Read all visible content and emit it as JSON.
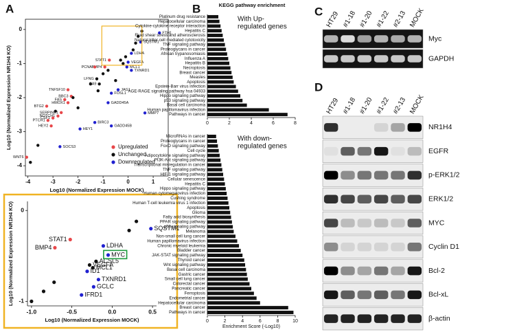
{
  "panel_labels": [
    "A",
    "B",
    "C",
    "D"
  ],
  "chart_data": [
    {
      "type": "scatter",
      "xlabel": "Log10 (Normalized Expression MOCK)",
      "ylabel": "Log10 (Normalized Expression NR1H4 KO)",
      "xlim": [
        -4.1,
        1.6
      ],
      "ylim": [
        -4.3,
        0.3
      ],
      "xticks": [
        -4,
        -3,
        -2,
        -1,
        0,
        1
      ],
      "yticks": [
        -4,
        -3,
        -2,
        -1,
        0
      ],
      "legend": "lower right",
      "series": [
        {
          "name": "Upregulated",
          "color": "#e8474a",
          "label_side": "left",
          "x": [
            -0.75,
            -0.93,
            -1.33,
            -2.27,
            -2.4,
            -2.53,
            -2.4,
            -3.25,
            -2.67,
            -2.8,
            -3.0,
            -3.2,
            -3.07,
            -4.05
          ],
          "y": [
            -0.9,
            -1.1,
            -1.1,
            -1.96,
            -1.77,
            -2.06,
            -2.15,
            -2.25,
            -2.44,
            -2.54,
            -2.6,
            -2.67,
            -2.83,
            -3.75
          ],
          "labels": [
            "STAT1",
            "BMP4",
            "PCNA",
            "BBC3",
            "TNFSF10",
            "FAS",
            "HMOX1",
            "BTG2",
            "SERPINE1",
            "NOTCH1",
            "CSF1",
            "PTCH1",
            "HEY2",
            "WNT6"
          ]
        },
        {
          "name": "Unchanged",
          "color": "#111111",
          "label_side": "left",
          "x": [
            -3.9,
            -3.6,
            -2.9,
            -2.0,
            -1.5,
            -1.0,
            -0.8,
            -0.3,
            0.2,
            0.3,
            0.4,
            0.55,
            -1.2,
            -0.5,
            -2.2,
            -1.25,
            -1.15,
            -0.2,
            -0.1
          ],
          "y": [
            -3.9,
            -3.4,
            -2.4,
            -2.3,
            -1.6,
            -1.3,
            -1.2,
            -0.9,
            -0.6,
            -0.4,
            -0.2,
            -0.05,
            -1.8,
            -1.5,
            -2.0,
            -1.45,
            -1.6,
            -1.0,
            -0.8
          ],
          "labels": [
            null,
            null,
            null,
            null,
            null,
            null,
            null,
            null,
            null,
            null,
            null,
            null,
            null,
            null,
            null,
            "LFNG",
            "CA9",
            null,
            null
          ]
        },
        {
          "name": "Downregulated",
          "color": "#2020d0",
          "label_side": "right",
          "x": [
            1.25,
            0.5,
            0.13,
            0.0,
            0.13,
            0.67,
            -0.8,
            -0.67,
            -0.4,
            -0.67,
            -1.33,
            -1.92,
            -2.72,
            -0.05
          ],
          "y": [
            -0.1,
            -0.37,
            -0.7,
            -0.96,
            -1.2,
            -2.45,
            -2.15,
            -2.83,
            -1.77,
            -1.87,
            -2.73,
            -2.92,
            -3.44,
            -1.1
          ],
          "labels": [
            "FTH1",
            "SQSTM1",
            "LDHA",
            "VEGFA",
            "TXNRD1",
            "MMP7",
            "GADD45A",
            "GADD45B",
            "JAG1",
            "FOSL1",
            "BIRC3",
            "HEY1",
            "SOCS3",
            "MCL1"
          ]
        }
      ]
    },
    {
      "type": "scatter",
      "xlabel": "Log10 (Normalized Expression MOCK)",
      "ylabel": "Log10 (Normalized Expression NR1H4 KO)",
      "xlim": [
        -1.05,
        0.55
      ],
      "ylim": [
        -1.05,
        0.1
      ],
      "xticks": [
        {
          "value": -1,
          "label": "-1.0"
        },
        {
          "value": -0.5,
          "label": "-0.5"
        },
        {
          "value": 0,
          "label": "0.0"
        },
        0.5
      ],
      "yticks": [
        -1,
        0
      ],
      "highlight_color": "#1a9a3a",
      "series": [
        {
          "color": "#e8474a",
          "label_side": "left",
          "x": [
            -0.52,
            -0.71
          ],
          "y": [
            -0.32,
            -0.41
          ],
          "labels": [
            "STAT1",
            "BMP4"
          ]
        },
        {
          "color": "#111111",
          "label_side": "right",
          "x": [
            0.3,
            0.21,
            -0.72,
            -0.85,
            -1.0,
            -0.2,
            -0.28,
            -0.24
          ],
          "y": [
            -0.12,
            -0.22,
            -0.79,
            -0.89,
            -1.0,
            -0.56,
            -0.6,
            -0.63
          ],
          "labels": [
            null,
            null,
            null,
            null,
            null,
            "ACSL5",
            "VEGFA",
            "MCL1"
          ]
        },
        {
          "color": "#2020d0",
          "label_side": "right",
          "highlight": 2,
          "x": [
            0.48,
            -0.11,
            -0.05,
            -0.31,
            -0.17,
            -0.23,
            -0.38
          ],
          "y": [
            -0.2,
            -0.39,
            -0.49,
            -0.67,
            -0.76,
            -0.84,
            -0.93
          ],
          "labels": [
            "SQSTM1",
            "LDHA",
            "MYC",
            "ID1",
            "TXNRD1",
            "GCLC",
            "IFRD1"
          ]
        }
      ]
    },
    {
      "type": "barh",
      "title": "KEGG pathway enrichment",
      "annotation": [
        "With Up-",
        "regulated genes"
      ],
      "annotation_color": "#d62728",
      "color": "#111111",
      "xlim": [
        0,
        8
      ],
      "xticks": [
        0,
        2,
        4,
        6,
        8
      ],
      "categories": [
        "Platinum drug resistance",
        "Hepatocellular carcinoma",
        "Cytokine-cytokine receptor interaction",
        "Hepatitis C",
        "Fluid shear stress and atherosclerosis",
        "Natural killer cell mediated cytotoxicity",
        "TNF signaling pathway",
        "Proteoglycans in cancer",
        "African trypanosomiasis",
        "Influenza A",
        "Hepatitis B",
        "Necroptosis",
        "Breast cancer",
        "Measles",
        "Apoptosis",
        "Epstein-Barr virus infection",
        "AGE-RAGE signaling pathway hsa 04933",
        "Hippo signaling pathway",
        "p53 signaling pathway",
        "Basal cell carcinoma",
        "Human papillomavirus infection",
        "Pathways in cancer"
      ],
      "values": [
        1.0,
        1.1,
        1.2,
        1.3,
        1.4,
        1.5,
        1.6,
        1.7,
        1.8,
        1.9,
        2.0,
        2.1,
        2.2,
        2.3,
        2.4,
        2.6,
        2.8,
        3.0,
        3.2,
        3.6,
        5.6,
        7.3
      ]
    },
    {
      "type": "barh",
      "annotation": [
        "With down-",
        "regulated genes"
      ],
      "annotation_color": "#2929c8",
      "color": "#111111",
      "xlim": [
        0,
        10
      ],
      "xticks": [
        0,
        2,
        4,
        6,
        8,
        10
      ],
      "xlabel": "Enrichment Score (-Log10)",
      "categories": [
        "MicroRNAs in cancer",
        "Proteoglycans in cancer",
        "FoxO signaling pathway",
        "Cell cycle",
        "Adipocytokine signaling pathway",
        "PI3K-Akt signaling pathway",
        "Transcriptional misregulation in cancer",
        "TNF signaling pathway",
        "HIF-1 signaling pathway",
        "Cellular senescence",
        "Hepatitis C",
        "Hippo signaling pathway",
        "Human cytomegalovirus infection",
        "Cushing syndrome",
        "Human T-cell leukemia virus 1 infection",
        "Apoptosis",
        "Glioma",
        "Fatty acid biosynthesis",
        "PPAR signaling pathway",
        "p53 signaling pathway",
        "Melanoma",
        "Non-small cell lung cancer",
        "Human papillomavirus infection",
        "Chronic myeloid leukemia",
        "Bladder cancer",
        "JAK-STAT signaling pathway",
        "Thyroid cancer",
        "Wnt signaling pathway",
        "Basal cell carcinoma",
        "Gastric cancer",
        "Small cell lung cancer",
        "Colorectal cancer",
        "Pancreatic cancer",
        "Ferroptosis",
        "Endometrial cancer",
        "Hepatocellular carcinoma",
        "Breast cancer",
        "Pathways in cancer"
      ],
      "values": [
        1.0,
        1.1,
        1.2,
        1.3,
        1.4,
        1.5,
        1.6,
        1.7,
        1.8,
        1.9,
        2.0,
        2.1,
        2.2,
        2.3,
        2.4,
        2.5,
        2.6,
        2.7,
        2.8,
        2.9,
        3.0,
        3.2,
        3.4,
        3.6,
        3.8,
        4.0,
        4.2,
        4.3,
        4.4,
        4.5,
        4.6,
        4.8,
        5.0,
        5.3,
        5.6,
        6.0,
        9.2,
        9.8
      ]
    }
  ],
  "blots": [
    {
      "style": "gel",
      "lanes": [
        "HT29",
        "#1-18",
        "#1-20",
        "#1-22",
        "#2-13",
        "MOCK"
      ],
      "rows": [
        {
          "label": "Myc",
          "band_intensity": [
            0.8,
            1,
            0.7,
            0.8,
            0.75,
            0.8
          ]
        },
        {
          "label": "GAPDH",
          "band_intensity": [
            0.9,
            0.9,
            0.9,
            0.9,
            0.9,
            0.9
          ]
        }
      ]
    },
    {
      "style": "western",
      "lanes": [
        "HT29",
        "#1-18",
        "#1-20",
        "#1-22",
        "#2-13",
        "MOCK"
      ],
      "rows": [
        {
          "label": "NR1H4",
          "band_intensity": [
            0.8,
            0,
            0,
            0.1,
            0.3,
            1
          ]
        },
        {
          "label": "EGFR",
          "band_intensity": [
            0.05,
            0.6,
            0.5,
            0.9,
            0.05,
            0.2
          ]
        },
        {
          "label": "p-ERK1/2",
          "band_intensity": [
            1,
            0.4,
            0.5,
            0.5,
            0.5,
            0.8
          ]
        },
        {
          "label": "ERK1/2",
          "band_intensity": [
            0.8,
            0.7,
            0.6,
            0.7,
            0.6,
            0.7
          ]
        },
        {
          "label": "MYC",
          "band_intensity": [
            0.7,
            0.2,
            0.15,
            0.2,
            0.15,
            0.6
          ]
        },
        {
          "label": "Cyclin D1",
          "band_intensity": [
            0.4,
            0.1,
            0.1,
            0.1,
            0.1,
            0.5
          ]
        },
        {
          "label": "Bcl-2",
          "band_intensity": [
            1,
            0.4,
            0.3,
            0.5,
            0.3,
            0.9
          ]
        },
        {
          "label": "Bcl-xL",
          "band_intensity": [
            0.9,
            0.6,
            0.5,
            0.6,
            0.5,
            0.9
          ]
        },
        {
          "label": "β-actin",
          "band_intensity": [
            0.85,
            0.85,
            0.85,
            0.85,
            0.85,
            0.85
          ]
        }
      ]
    }
  ]
}
